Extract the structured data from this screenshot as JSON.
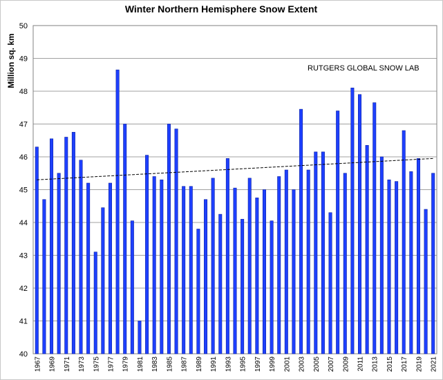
{
  "chart_data": {
    "type": "bar",
    "title": "Winter Northern Hemisphere Snow Extent",
    "y_label": "Million sq. km",
    "annotation": "RUTGERS GLOBAL SNOW LAB",
    "color": "#1e40ff",
    "grid": true,
    "ylim": [
      40,
      50
    ],
    "yticks": [
      40,
      41,
      42,
      43,
      44,
      45,
      46,
      47,
      48,
      49,
      50
    ],
    "categories": [
      "1967",
      null,
      "1969",
      null,
      "1971",
      null,
      "1973",
      null,
      "1975",
      null,
      "1977",
      null,
      "1979",
      null,
      "1981",
      null,
      "1983",
      null,
      "1985",
      null,
      "1987",
      null,
      "1989",
      null,
      "1991",
      null,
      "1993",
      null,
      "1995",
      null,
      "1997",
      null,
      "1999",
      null,
      "2001",
      null,
      "2003",
      null,
      "2005",
      null,
      "2007",
      null,
      "2009",
      null,
      "2011",
      null,
      "2013",
      null,
      "2015",
      null,
      "2017",
      null,
      "2019",
      null,
      "2021"
    ],
    "values": [
      46.3,
      44.7,
      46.55,
      45.5,
      46.6,
      46.75,
      45.9,
      45.2,
      43.1,
      44.45,
      45.2,
      48.65,
      47.0,
      44.05,
      41.0,
      46.05,
      45.4,
      45.3,
      47.0,
      46.85,
      45.1,
      45.1,
      43.8,
      44.7,
      45.35,
      44.25,
      45.95,
      45.05,
      44.1,
      45.35,
      44.75,
      45.0,
      44.05,
      45.4,
      45.6,
      45.0,
      47.45,
      45.6,
      46.15,
      46.15,
      44.3,
      47.4,
      45.5,
      48.1,
      47.9,
      46.35,
      47.65,
      46.0,
      45.3,
      45.25,
      46.8,
      45.55,
      45.95,
      44.4,
      45.5
    ],
    "trend_line": [
      45.3,
      45.95
    ]
  }
}
